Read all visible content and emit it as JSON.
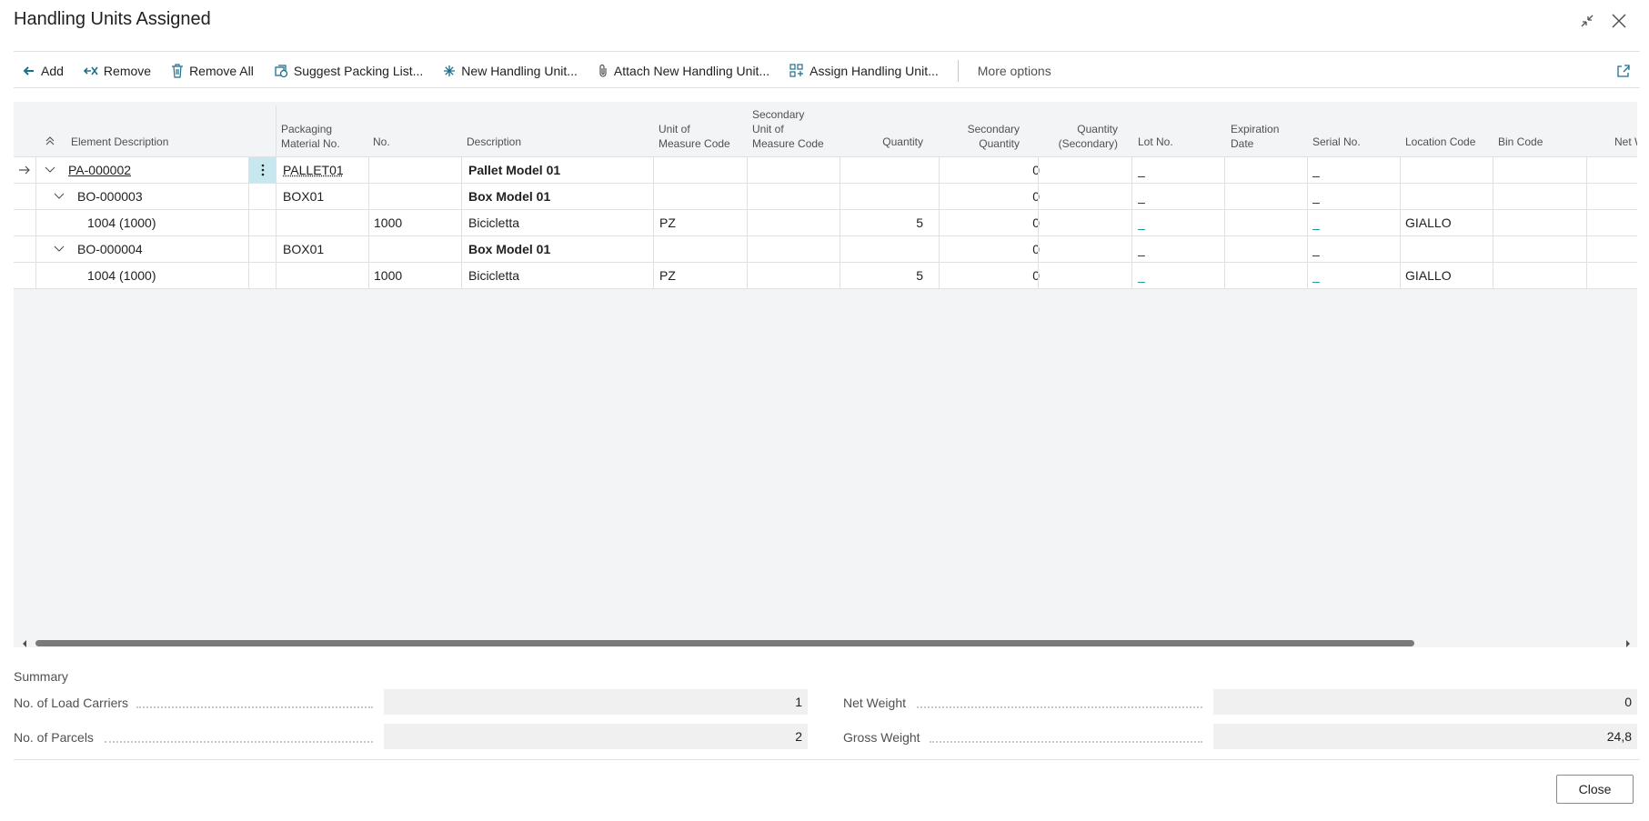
{
  "window": {
    "title": "Handling Units Assigned"
  },
  "toolbar": {
    "add": "Add",
    "remove": "Remove",
    "remove_all": "Remove All",
    "suggest": "Suggest Packing List...",
    "new_hu": "New Handling Unit...",
    "attach_hu": "Attach New Handling Unit...",
    "assign_hu": "Assign Handling Unit...",
    "more": "More options"
  },
  "grid": {
    "headers": {
      "element_description": "Element Description",
      "packaging_1": "Packaging",
      "packaging_2": "Material No.",
      "no": "No.",
      "description": "Description",
      "uom_1": "Unit of",
      "uom_2": "Measure Code",
      "suom_1": "Secondary",
      "suom_2": "Unit of",
      "suom_3": "Measure Code",
      "quantity": "Quantity",
      "secq_1": "Secondary",
      "secq_2": "Quantity",
      "qsec_1": "Quantity",
      "qsec_2": "(Secondary)",
      "lot": "Lot No.",
      "exp_1": "Expiration",
      "exp_2": "Date",
      "serial": "Serial No.",
      "location": "Location Code",
      "bin": "Bin Code",
      "net": "Net W"
    },
    "rows": [
      {
        "element": "PA-000002",
        "material": "PALLET01",
        "no": "",
        "description": "Pallet Model 01",
        "uom": "",
        "quantity": "",
        "sec_qty": "0",
        "lot": "_",
        "serial": "_",
        "location": ""
      },
      {
        "element": "BO-000003",
        "material": "BOX01",
        "no": "",
        "description": "Box Model 01",
        "uom": "",
        "quantity": "",
        "sec_qty": "0",
        "lot": "_",
        "serial": "_",
        "location": ""
      },
      {
        "element": "1004 (1000)",
        "material": "",
        "no": "1000",
        "description": "Bicicletta",
        "uom": "PZ",
        "quantity": "5",
        "sec_qty": "0",
        "lot": "_",
        "serial": "_",
        "location": "GIALLO"
      },
      {
        "element": "BO-000004",
        "material": "BOX01",
        "no": "",
        "description": "Box Model 01",
        "uom": "",
        "quantity": "",
        "sec_qty": "0",
        "lot": "_",
        "serial": "_",
        "location": ""
      },
      {
        "element": "1004 (1000)",
        "material": "",
        "no": "1000",
        "description": "Bicicletta",
        "uom": "PZ",
        "quantity": "5",
        "sec_qty": "0",
        "lot": "_",
        "serial": "_",
        "location": "GIALLO"
      }
    ]
  },
  "summary": {
    "title": "Summary",
    "load_carriers_label": "No. of Load Carriers",
    "load_carriers_value": "1",
    "parcels_label": "No. of Parcels",
    "parcels_value": "2",
    "net_weight_label": "Net Weight",
    "net_weight_value": "0",
    "gross_weight_label": "Gross Weight",
    "gross_weight_value": "24,8"
  },
  "footer": {
    "close": "Close"
  }
}
